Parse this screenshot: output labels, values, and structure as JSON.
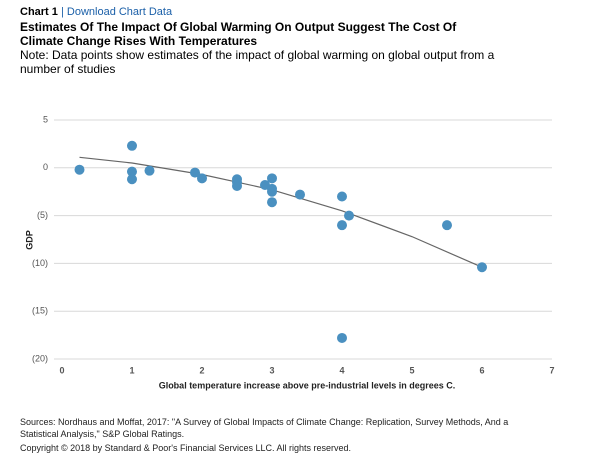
{
  "header": {
    "label": "Chart 1",
    "separator": "|",
    "link": "Download Chart Data"
  },
  "chart_data": {
    "type": "scatter",
    "title": "Estimates Of The Impact Of Global Warming On Output Suggest The Cost Of Climate Change Rises With Temperatures",
    "subtitle": "Note: Data points show estimates of the impact of global warming on global output from a number of studies",
    "x_label": "Global temperature increase above pre-industrial levels in degrees C.",
    "y_label": "GDP",
    "xlim": [
      0,
      7
    ],
    "xticks": [
      0,
      1,
      2,
      3,
      4,
      5,
      6,
      7
    ],
    "ylim": [
      -20,
      5
    ],
    "yticks": [
      5,
      0,
      {
        "value": -5,
        "label": "(5)"
      },
      {
        "value": -10,
        "label": "(10)"
      },
      {
        "value": -15,
        "label": "(15)"
      },
      {
        "value": -20,
        "label": "(20)"
      }
    ],
    "grid": true,
    "series": [
      {
        "color": "#4a90c0",
        "x": [
          0.25,
          1,
          1,
          1,
          1.25,
          1.9,
          2,
          2.5,
          2.5,
          2.5,
          2.9,
          3,
          3,
          3,
          3,
          3.4,
          4,
          4,
          4.1,
          4,
          5.5,
          6
        ],
        "values": [
          -0.2,
          2.3,
          -0.4,
          -1.2,
          -0.3,
          -0.5,
          -1.1,
          -1.2,
          -1.5,
          -1.9,
          -1.8,
          -1.1,
          -2.2,
          -2.5,
          -3.6,
          -2.8,
          -3,
          -6,
          -5,
          -17.8,
          -6,
          -10.4
        ]
      }
    ],
    "trend": {
      "color": "#666666",
      "x": [
        0.25,
        1,
        2,
        3,
        4,
        5,
        6
      ],
      "values": [
        1.1,
        0.5,
        -0.7,
        -2.3,
        -4.5,
        -7.2,
        -10.4
      ]
    }
  },
  "footer": {
    "sources": "Sources: Nordhaus and Moffat, 2017: \"A Survey of Global Impacts of Climate Change: Replication, Survey Methods, And a Statistical Analysis,\" S&P Global Ratings.",
    "copyright": "Copyright © 2018 by Standard & Poor's Financial Services LLC. All rights reserved."
  }
}
